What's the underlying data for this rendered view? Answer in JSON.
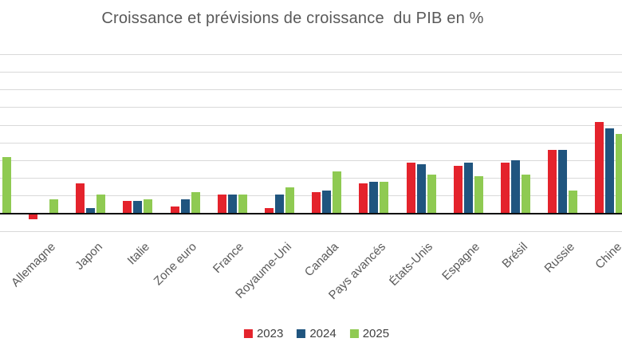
{
  "chart_data": {
    "type": "bar",
    "title": "Croissance et prévisions de croissance  du PIB en %",
    "categories": [
      "",
      "Allemagne",
      "Japon",
      "Italie",
      "Zone euro",
      "France",
      "Royaume-Uni",
      "Canada",
      "Pays avancés",
      "États-Unis",
      "Espagne",
      "Brésil",
      "Russie",
      "Chine"
    ],
    "series": [
      {
        "name": "2023",
        "color": "#E4232C",
        "values": [
          null,
          -0.3,
          1.7,
          0.7,
          0.4,
          1.1,
          0.3,
          1.2,
          1.7,
          2.9,
          2.7,
          2.9,
          3.6,
          5.2
        ]
      },
      {
        "name": "2024",
        "color": "#20557F",
        "values": [
          null,
          0,
          0.3,
          0.7,
          0.8,
          1.1,
          1.1,
          1.3,
          1.8,
          2.8,
          2.9,
          3.0,
          3.6,
          4.8
        ]
      },
      {
        "name": "2025",
        "color": "#8FCA52",
        "values": [
          3.2,
          0.8,
          1.1,
          0.8,
          1.2,
          1.1,
          1.5,
          2.4,
          1.8,
          2.2,
          2.1,
          2.2,
          1.3,
          4.5
        ]
      }
    ],
    "xlabel": "",
    "ylabel": "",
    "ylim": [
      -1,
      9
    ],
    "gridline_step": 1,
    "grid": true,
    "legend_position": "bottom",
    "title_color": "#595959",
    "axis_label_color": "#595959",
    "legend_text_color": "#404040",
    "gridline_color": "#D9D9D9",
    "axis_line_color": "#0D0D0D",
    "background_color": "#FFFFFF"
  }
}
